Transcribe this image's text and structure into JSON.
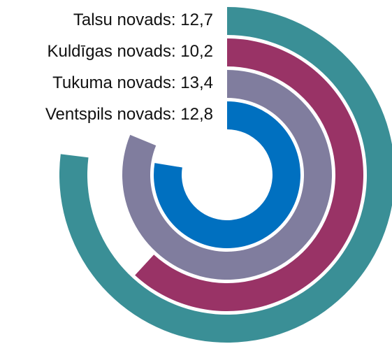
{
  "chart_data": {
    "type": "radial_bar",
    "categories": [
      "Talsu novads:",
      "Kuldīgas novads:",
      "Tukuma novads:",
      "Ventspils novads:"
    ],
    "values": [
      12.7,
      10.2,
      13.4,
      12.8
    ],
    "value_labels": [
      "12,7",
      "10,2",
      "13,4",
      "12,8"
    ],
    "colors": [
      "#3a8f96",
      "#993366",
      "#807d9e",
      "#0070c0"
    ],
    "xlim": [
      0,
      16.5
    ]
  }
}
